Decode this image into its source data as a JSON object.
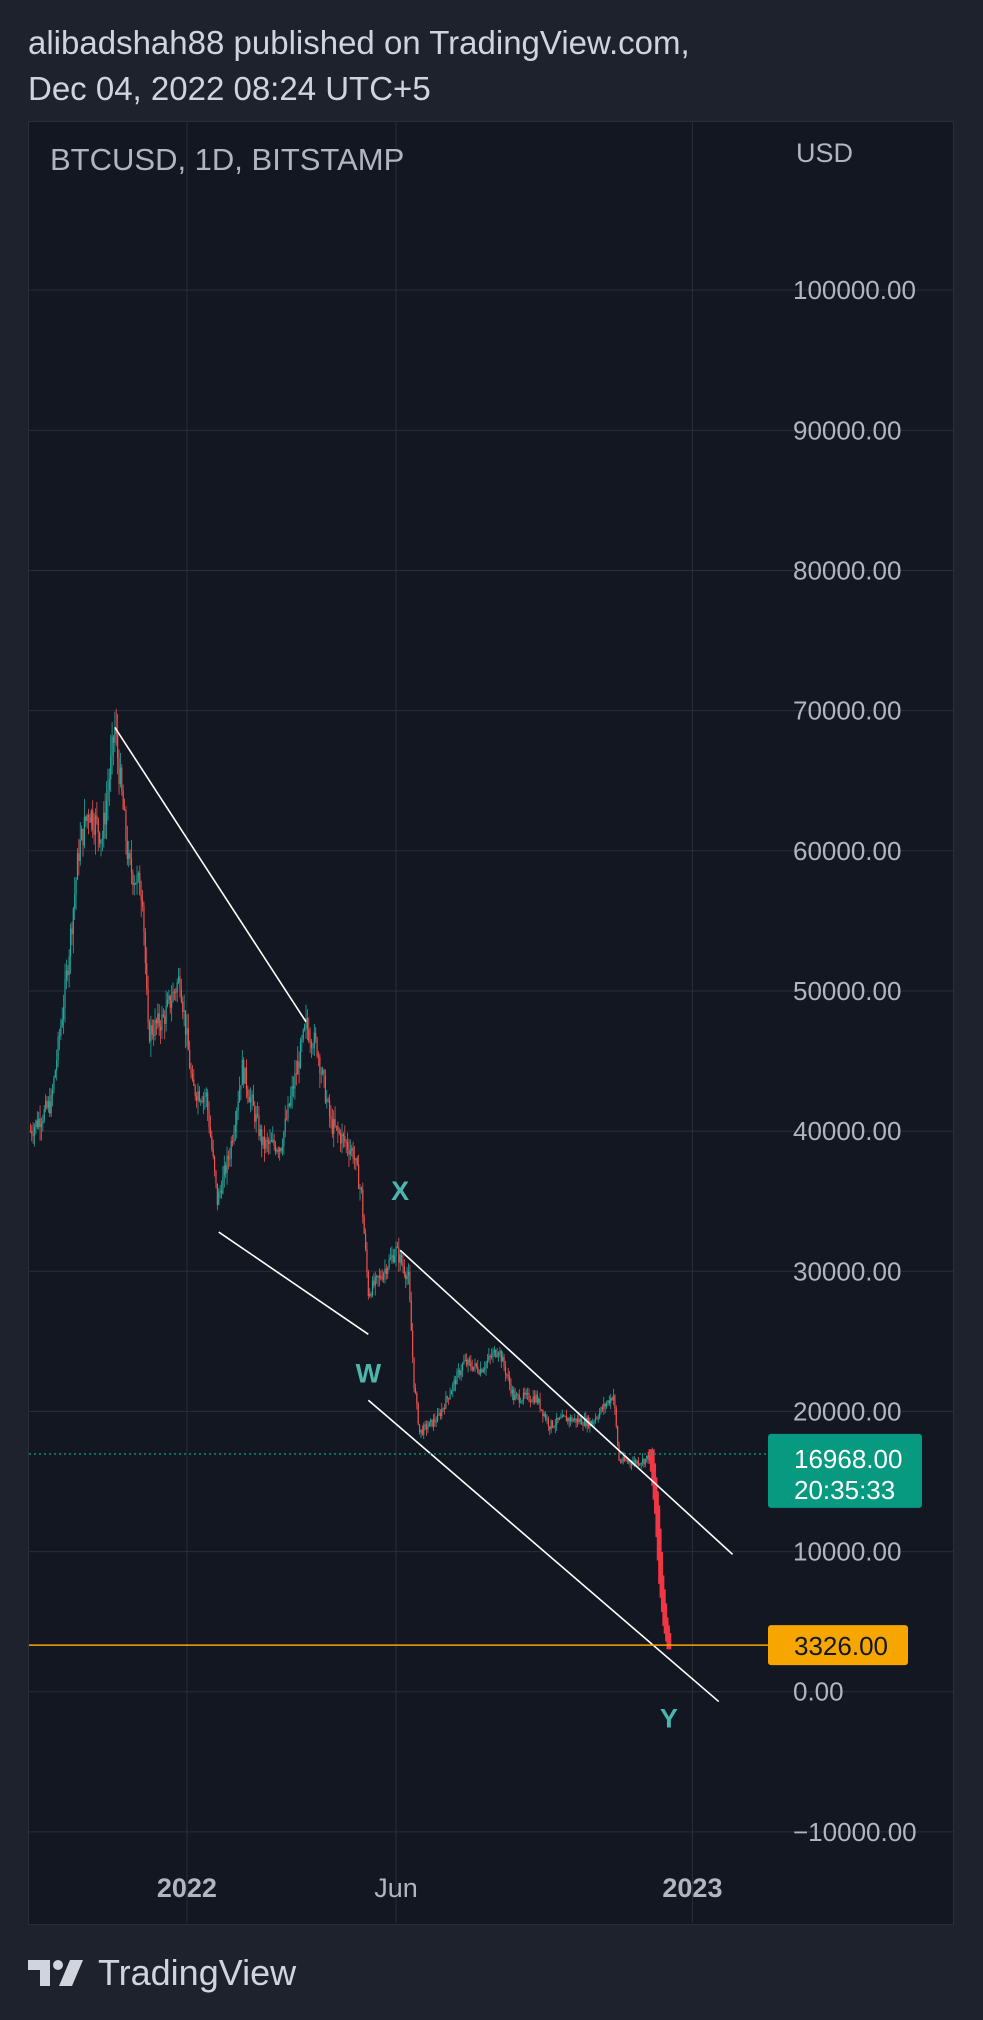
{
  "header": {
    "line1": "alibadshah88 published on TradingView.com,",
    "line2": "Dec 04, 2022 08:24 UTC+5"
  },
  "chart_data": {
    "type": "candlestick",
    "symbol": "BTCUSD, 1D, BITSTAMP",
    "currency": "USD",
    "ylim": [
      -16500,
      112000
    ],
    "y_ticks": [
      "100000.00",
      "90000.00",
      "80000.00",
      "70000.00",
      "60000.00",
      "50000.00",
      "40000.00",
      "30000.00",
      "20000.00",
      "10000.00",
      "0.00",
      "−10000.00"
    ],
    "y_tick_values": [
      100000,
      90000,
      80000,
      70000,
      60000,
      50000,
      40000,
      30000,
      20000,
      10000,
      0,
      -10000
    ],
    "x_ticks": [
      {
        "label": "2022",
        "date": "2022-01-01",
        "bold": true
      },
      {
        "label": "Jun",
        "date": "2022-06-01",
        "bold": false
      },
      {
        "label": "2023",
        "date": "2023-01-01",
        "bold": true
      }
    ],
    "xlim": [
      "2021-09-09",
      "2023-02-26"
    ],
    "price_path": [
      [
        "2021-09-10",
        40000
      ],
      [
        "2021-09-25",
        42000
      ],
      [
        "2021-10-05",
        50000
      ],
      [
        "2021-10-15",
        60000
      ],
      [
        "2021-10-22",
        63000
      ],
      [
        "2021-11-01",
        61000
      ],
      [
        "2021-11-10",
        68700
      ],
      [
        "2021-11-20",
        59000
      ],
      [
        "2021-11-30",
        57000
      ],
      [
        "2021-12-04",
        47000
      ],
      [
        "2021-12-15",
        48000
      ],
      [
        "2021-12-27",
        51000
      ],
      [
        "2022-01-05",
        43000
      ],
      [
        "2022-01-15",
        42500
      ],
      [
        "2022-01-23",
        35000
      ],
      [
        "2022-02-01",
        38500
      ],
      [
        "2022-02-10",
        44500
      ],
      [
        "2022-02-25",
        39000
      ],
      [
        "2022-03-10",
        39000
      ],
      [
        "2022-03-28",
        47500
      ],
      [
        "2022-04-05",
        46000
      ],
      [
        "2022-04-15",
        40500
      ],
      [
        "2022-05-01",
        38500
      ],
      [
        "2022-05-07",
        35500
      ],
      [
        "2022-05-12",
        28500
      ],
      [
        "2022-05-20",
        29500
      ],
      [
        "2022-06-01",
        31500
      ],
      [
        "2022-06-10",
        29500
      ],
      [
        "2022-06-14",
        22000
      ],
      [
        "2022-06-18",
        18500
      ],
      [
        "2022-07-01",
        19500
      ],
      [
        "2022-07-20",
        23500
      ],
      [
        "2022-08-01",
        23000
      ],
      [
        "2022-08-14",
        24500
      ],
      [
        "2022-08-25",
        21000
      ],
      [
        "2022-09-10",
        21000
      ],
      [
        "2022-09-20",
        19000
      ],
      [
        "2022-10-01",
        19500
      ],
      [
        "2022-10-20",
        19200
      ],
      [
        "2022-11-05",
        21200
      ],
      [
        "2022-11-09",
        16500
      ],
      [
        "2022-11-20",
        16400
      ],
      [
        "2022-11-27",
        16500
      ],
      [
        "2022-12-03",
        16968
      ]
    ],
    "projection": [
      [
        "2022-12-02",
        17000
      ],
      [
        "2022-12-06",
        13000
      ],
      [
        "2022-12-09",
        8000
      ],
      [
        "2022-12-12",
        5000
      ],
      [
        "2022-12-15",
        3326
      ]
    ],
    "trendlines": [
      {
        "from": [
          "2021-11-10",
          68800
        ],
        "to": [
          "2022-03-28",
          47800
        ]
      },
      {
        "from": [
          "2022-01-24",
          32800
        ],
        "to": [
          "2022-05-12",
          25500
        ]
      },
      {
        "from": [
          "2022-06-04",
          31500
        ],
        "to": [
          "2023-01-30",
          9800
        ]
      },
      {
        "from": [
          "2022-05-12",
          20800
        ],
        "to": [
          "2023-01-20",
          -700
        ]
      }
    ],
    "wave_labels": [
      {
        "text": "W",
        "date": "2022-05-12",
        "price": 21500
      },
      {
        "text": "X",
        "date": "2022-06-04",
        "price": 34500
      },
      {
        "text": "Y",
        "date": "2022-12-15",
        "price": 0
      }
    ],
    "current_price": {
      "value": 16968.0,
      "label": "16968.00",
      "countdown": "20:35:33"
    },
    "target_level": {
      "value": 3326.0,
      "label": "3326.00"
    }
  },
  "colors": {
    "up": "#26a69a",
    "down": "#ef5350",
    "projection": "#f23645",
    "target_line": "#f7a600",
    "current_badge": "#089981",
    "wave_label": "#4db6ac",
    "grid": "#2a2e39",
    "axis_text": "#b2b5be"
  },
  "footer": {
    "brand": "TradingView"
  }
}
